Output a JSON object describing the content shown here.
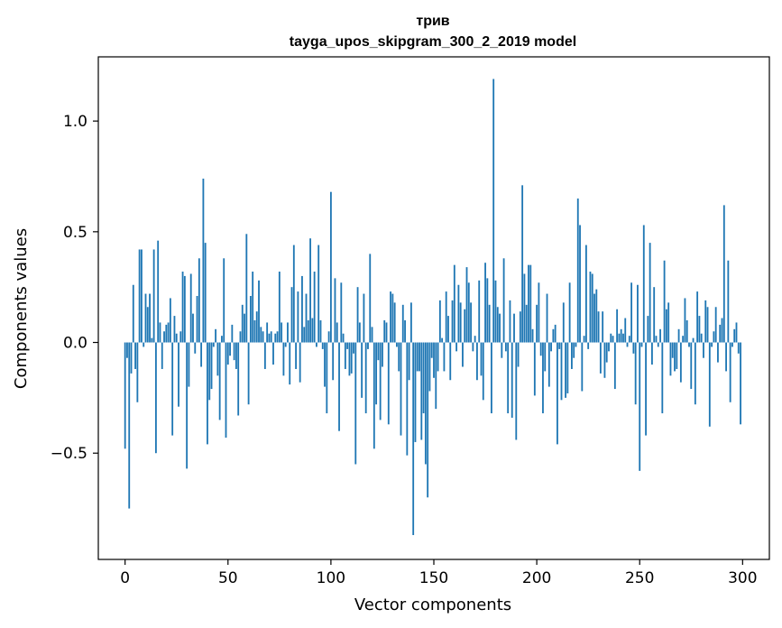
{
  "chart_data": {
    "type": "bar",
    "title_line1": "трив",
    "title_line2": "tayga_upos_skipgram_300_2_2019 model",
    "xlabel": "Vector components",
    "ylabel": "Components values",
    "xlim": [
      -13,
      313
    ],
    "ylim": [
      -0.98,
      1.29
    ],
    "x_ticks": [
      0,
      50,
      100,
      150,
      200,
      250,
      300
    ],
    "x_tick_labels": [
      "0",
      "50",
      "100",
      "150",
      "200",
      "250",
      "300"
    ],
    "y_ticks": [
      -0.5,
      0.0,
      0.5,
      1.0
    ],
    "y_tick_labels": [
      "−0.5",
      "0.0",
      "0.5",
      "1.0"
    ],
    "bar_color": "#1f77b4",
    "values": [
      -0.48,
      -0.07,
      -0.75,
      -0.14,
      0.26,
      -0.12,
      -0.27,
      0.42,
      0.42,
      -0.02,
      0.22,
      0.16,
      0.22,
      0.02,
      0.42,
      -0.5,
      0.46,
      0.09,
      -0.12,
      0.05,
      0.08,
      0.09,
      0.2,
      -0.42,
      0.12,
      0.04,
      -0.29,
      0.05,
      0.32,
      0.3,
      -0.57,
      -0.2,
      0.31,
      0.13,
      -0.05,
      0.21,
      0.38,
      -0.11,
      0.74,
      0.45,
      -0.46,
      -0.26,
      -0.21,
      -0.02,
      0.06,
      -0.15,
      -0.35,
      0.03,
      0.38,
      -0.43,
      -0.1,
      -0.06,
      0.08,
      -0.08,
      -0.12,
      -0.33,
      0.05,
      0.17,
      0.13,
      0.49,
      -0.28,
      0.21,
      0.32,
      0.1,
      0.14,
      0.28,
      0.07,
      0.05,
      -0.12,
      0.09,
      0.04,
      0.05,
      -0.1,
      0.04,
      0.05,
      0.32,
      0.09,
      -0.15,
      -0.02,
      0.09,
      -0.19,
      0.25,
      0.44,
      -0.12,
      0.23,
      -0.18,
      0.3,
      0.07,
      0.22,
      0.1,
      0.47,
      0.11,
      0.32,
      -0.02,
      0.44,
      0.1,
      -0.03,
      -0.2,
      -0.32,
      0.05,
      0.68,
      -0.17,
      0.29,
      0.09,
      -0.4,
      0.27,
      0.04,
      -0.12,
      -0.03,
      -0.15,
      -0.14,
      -0.05,
      -0.55,
      0.25,
      0.09,
      -0.25,
      0.22,
      -0.32,
      -0.03,
      0.4,
      0.07,
      -0.48,
      -0.28,
      -0.08,
      -0.35,
      -0.11,
      0.1,
      0.09,
      -0.37,
      0.23,
      0.22,
      0.18,
      -0.02,
      -0.13,
      -0.42,
      0.17,
      0.1,
      -0.51,
      -0.17,
      0.18,
      -0.87,
      -0.45,
      -0.13,
      -0.13,
      -0.44,
      -0.32,
      -0.55,
      -0.7,
      -0.22,
      -0.07,
      -0.16,
      -0.3,
      -0.13,
      0.19,
      0.02,
      -0.13,
      0.23,
      0.12,
      -0.17,
      0.19,
      0.35,
      -0.04,
      0.26,
      0.18,
      -0.11,
      0.15,
      0.34,
      0.27,
      0.18,
      -0.04,
      0.03,
      -0.17,
      0.28,
      -0.15,
      -0.26,
      0.36,
      0.29,
      0.17,
      -0.32,
      1.19,
      0.28,
      0.16,
      0.13,
      -0.07,
      0.38,
      -0.04,
      -0.32,
      0.19,
      -0.34,
      0.13,
      -0.44,
      -0.11,
      0.14,
      0.71,
      0.31,
      0.17,
      0.35,
      0.35,
      0.06,
      -0.24,
      0.17,
      0.27,
      -0.06,
      -0.32,
      -0.13,
      0.22,
      -0.2,
      -0.04,
      0.06,
      0.08,
      -0.46,
      -0.03,
      -0.26,
      0.18,
      -0.25,
      -0.23,
      0.27,
      -0.12,
      -0.07,
      -0.02,
      0.65,
      0.53,
      -0.22,
      0.03,
      0.44,
      -0.03,
      0.32,
      0.31,
      0.22,
      0.24,
      0.14,
      -0.14,
      0.14,
      -0.16,
      -0.09,
      -0.04,
      0.04,
      0.03,
      -0.21,
      0.15,
      0.04,
      0.06,
      0.04,
      0.11,
      -0.02,
      0.03,
      0.27,
      -0.05,
      -0.28,
      0.26,
      -0.58,
      -0.02,
      0.53,
      -0.42,
      0.12,
      0.45,
      -0.1,
      0.25,
      0.03,
      -0.02,
      0.06,
      -0.32,
      0.37,
      0.15,
      0.18,
      -0.15,
      -0.07,
      -0.13,
      -0.12,
      0.06,
      -0.18,
      0.03,
      0.2,
      0.1,
      -0.02,
      -0.21,
      0.02,
      -0.28,
      0.23,
      0.12,
      0.04,
      -0.07,
      0.19,
      0.16,
      -0.38,
      -0.02,
      0.05,
      0.16,
      -0.09,
      0.08,
      0.11,
      0.62,
      -0.13,
      0.37,
      -0.27,
      -0.02,
      0.06,
      0.09,
      -0.05,
      -0.37
    ]
  }
}
